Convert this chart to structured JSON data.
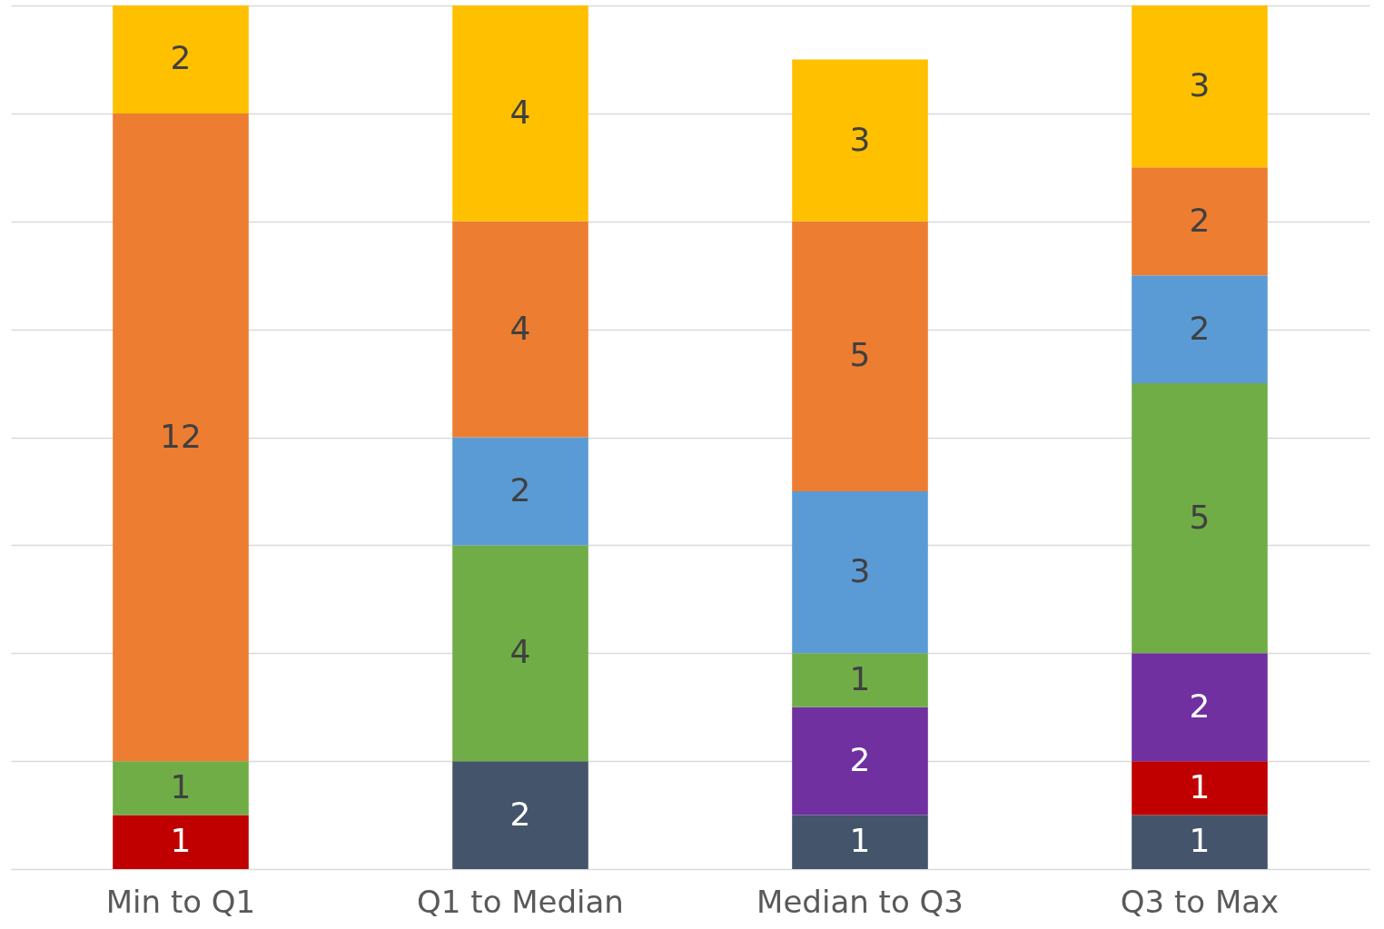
{
  "chart_data": {
    "type": "bar",
    "stacked": true,
    "categories": [
      "Min to Q1",
      "Q1 to Median",
      "Median to Q3",
      "Q3 to Max"
    ],
    "grid": "y",
    "tick_labels": "x",
    "data_labels": true,
    "series": [
      {
        "color": "#44546a",
        "values": [
          null,
          2,
          1,
          1
        ]
      },
      {
        "color": "#c00000",
        "values": [
          1,
          null,
          null,
          1
        ]
      },
      {
        "color": "#7030a0",
        "values": [
          null,
          null,
          2,
          2
        ]
      },
      {
        "color": "#70ad47",
        "values": [
          1,
          4,
          1,
          5
        ]
      },
      {
        "color": "#5b9bd5",
        "values": [
          null,
          2,
          3,
          2
        ]
      },
      {
        "color": "#ed7d31",
        "values": [
          12,
          4,
          5,
          2
        ]
      },
      {
        "color": "#ffc000",
        "values": [
          2,
          4,
          3,
          3
        ]
      }
    ]
  }
}
